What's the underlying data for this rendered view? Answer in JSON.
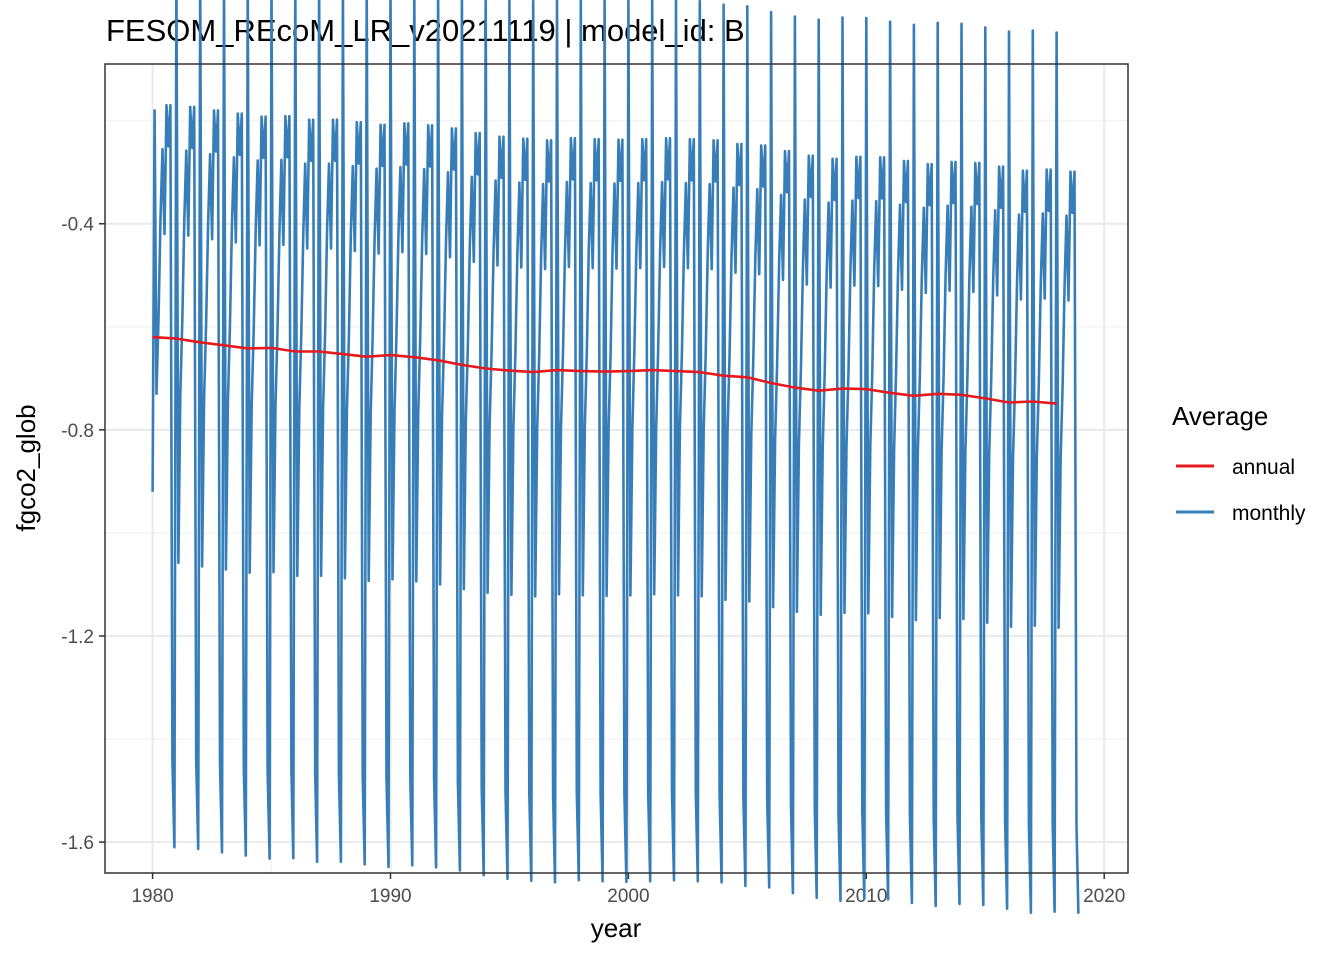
{
  "chart_data": {
    "type": "line",
    "title": "FESOM_REcoM_LR_v20211119 | model_id: B",
    "xlabel": "year",
    "ylabel": "fgco2_glob",
    "xlim": [
      1978,
      2021
    ],
    "ylim": [
      -1.66,
      -0.09
    ],
    "x_ticks": [
      1980,
      1990,
      2000,
      2010,
      2020
    ],
    "x_tick_labels": [
      "1980",
      "1990",
      "2000",
      "2010",
      "2020"
    ],
    "y_ticks": [
      -0.4,
      -0.8,
      -1.2,
      -1.6
    ],
    "y_tick_labels": [
      "-0.4",
      "-0.8",
      "-1.2",
      "-1.6"
    ],
    "grid": true,
    "legend": {
      "title": "Average",
      "position": "right",
      "entries": [
        {
          "label": "annual",
          "color": "#e41a1c"
        },
        {
          "label": "monthly",
          "color": "#377eb8"
        }
      ]
    },
    "series": [
      {
        "name": "annual",
        "color": "#e41a1c",
        "x": [
          1980,
          1981,
          1982,
          1983,
          1984,
          1985,
          1986,
          1987,
          1988,
          1989,
          1990,
          1991,
          1992,
          1993,
          1994,
          1995,
          1996,
          1997,
          1998,
          1999,
          2000,
          2001,
          2002,
          2003,
          2004,
          2005,
          2006,
          2007,
          2008,
          2009,
          2010,
          2011,
          2012,
          2013,
          2014,
          2015,
          2016,
          2017,
          2018
        ],
        "y": [
          -0.62,
          -0.623,
          -0.63,
          -0.636,
          -0.642,
          -0.641,
          -0.648,
          -0.648,
          -0.653,
          -0.658,
          -0.655,
          -0.659,
          -0.665,
          -0.674,
          -0.681,
          -0.685,
          -0.688,
          -0.684,
          -0.686,
          -0.687,
          -0.686,
          -0.684,
          -0.686,
          -0.688,
          -0.695,
          -0.698,
          -0.709,
          -0.718,
          -0.724,
          -0.72,
          -0.721,
          -0.728,
          -0.734,
          -0.73,
          -0.732,
          -0.739,
          -0.747,
          -0.745,
          -0.749
        ]
      },
      {
        "name": "monthly",
        "color": "#377eb8",
        "pattern": "12 values per year starting Jan 1980",
        "monthly_pattern": [
          0.72,
          -0.435,
          -0.11,
          0.035,
          0.23,
          0.365,
          0.2,
          0.45,
          0.37,
          0.45,
          -0.82,
          -0.99
        ],
        "note": "value = annual + pattern value"
      }
    ]
  }
}
